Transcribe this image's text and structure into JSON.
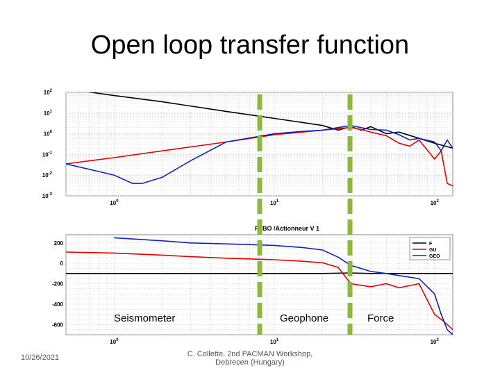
{
  "slide": {
    "title": "Open loop transfer function",
    "date": "10/26/2021",
    "footer_line1": "C. Collette, 2nd PACMAN Workshop,",
    "footer_line2": "Debrecen (Hungary)"
  },
  "annotations": {
    "seismometer": "Seismometer",
    "geophone": "Geophone",
    "force": "Force"
  },
  "colors": {
    "F": "#000000",
    "GU": "#e00000",
    "GEO": "#1020c0",
    "divider": "#8db83a",
    "grid": "#c8c8c8"
  },
  "chart_data": [
    {
      "type": "line",
      "title": "",
      "x_scale": "log",
      "y_scale": "log",
      "xlim": [
        0.5,
        130
      ],
      "ylim": [
        0.001,
        100
      ],
      "x_ticks": [
        1,
        10,
        100
      ],
      "x_tick_labels": [
        "10^0",
        "10^1",
        "10^2"
      ],
      "y_ticks": [
        100,
        10,
        1,
        0.1,
        0.01,
        0.001
      ],
      "y_tick_labels": [
        "10^2",
        "10^1",
        "10^0",
        "10^-1",
        "10^-2",
        "10^-3"
      ],
      "grid": true,
      "series": [
        {
          "name": "F",
          "x": [
            0.5,
            1,
            2,
            5,
            10,
            20,
            25,
            30,
            35,
            40,
            50,
            60,
            80,
            100,
            130
          ],
          "y": [
            150,
            70,
            35,
            12,
            5.5,
            2.5,
            1.5,
            2.2,
            1.5,
            2.2,
            1.0,
            1.2,
            0.6,
            0.35,
            0.2
          ]
        },
        {
          "name": "GU",
          "x": [
            0.5,
            1,
            2,
            5,
            10,
            20,
            30,
            35,
            40,
            50,
            60,
            70,
            80,
            100,
            110,
            120,
            130
          ],
          "y": [
            0.035,
            0.07,
            0.15,
            0.4,
            0.9,
            1.5,
            2.0,
            1.6,
            1.2,
            0.8,
            0.35,
            0.25,
            0.5,
            0.06,
            0.15,
            0.004,
            0.003
          ]
        },
        {
          "name": "GEO",
          "x": [
            0.5,
            1,
            1.3,
            1.5,
            2,
            3,
            5,
            10,
            15,
            20,
            30,
            40,
            50,
            60,
            70,
            80,
            100,
            110,
            120,
            130
          ],
          "y": [
            0.035,
            0.01,
            0.004,
            0.004,
            0.008,
            0.05,
            0.4,
            1.0,
            1.3,
            1.5,
            2.5,
            1.6,
            1.5,
            0.9,
            0.5,
            0.6,
            0.4,
            0.15,
            0.5,
            0.2
          ]
        }
      ]
    },
    {
      "type": "line",
      "title": "FTBO /Actionneur V 1",
      "x_scale": "log",
      "xlim": [
        0.5,
        130
      ],
      "ylim": [
        -700,
        280
      ],
      "x_ticks": [
        1,
        10,
        100
      ],
      "x_tick_labels": [
        "10^0",
        "10^1",
        "10^2"
      ],
      "y_ticks": [
        200,
        0,
        -200,
        -400,
        -600
      ],
      "y_tick_labels": [
        "200",
        "0",
        "-200",
        "-400",
        "-600"
      ],
      "grid": true,
      "legend": {
        "position": "top-right",
        "entries": [
          "F",
          "GU",
          "GEO"
        ]
      },
      "series": [
        {
          "name": "F",
          "x": [
            0.5,
            1,
            2,
            5,
            10,
            20,
            30,
            40,
            50,
            60,
            80,
            100,
            130
          ],
          "y": [
            -100,
            -100,
            -100,
            -100,
            -100,
            -100,
            -95,
            -100,
            -100,
            -100,
            -100,
            -100,
            -100
          ]
        },
        {
          "name": "GU",
          "x": [
            0.5,
            1,
            2,
            3,
            5,
            10,
            15,
            20,
            25,
            30,
            40,
            50,
            60,
            80,
            100,
            110,
            120,
            130
          ],
          "y": [
            110,
            100,
            80,
            65,
            50,
            35,
            20,
            5,
            -40,
            -200,
            -230,
            -200,
            -240,
            -200,
            -500,
            -550,
            -600,
            -650
          ]
        },
        {
          "name": "GEO",
          "x": [
            1,
            2,
            3,
            5,
            10,
            15,
            20,
            25,
            30,
            40,
            50,
            60,
            80,
            100,
            110,
            120,
            130
          ],
          "y": [
            250,
            220,
            200,
            190,
            175,
            155,
            130,
            60,
            -20,
            -80,
            -100,
            -120,
            -150,
            -300,
            -500,
            -650,
            -700
          ]
        }
      ]
    }
  ]
}
